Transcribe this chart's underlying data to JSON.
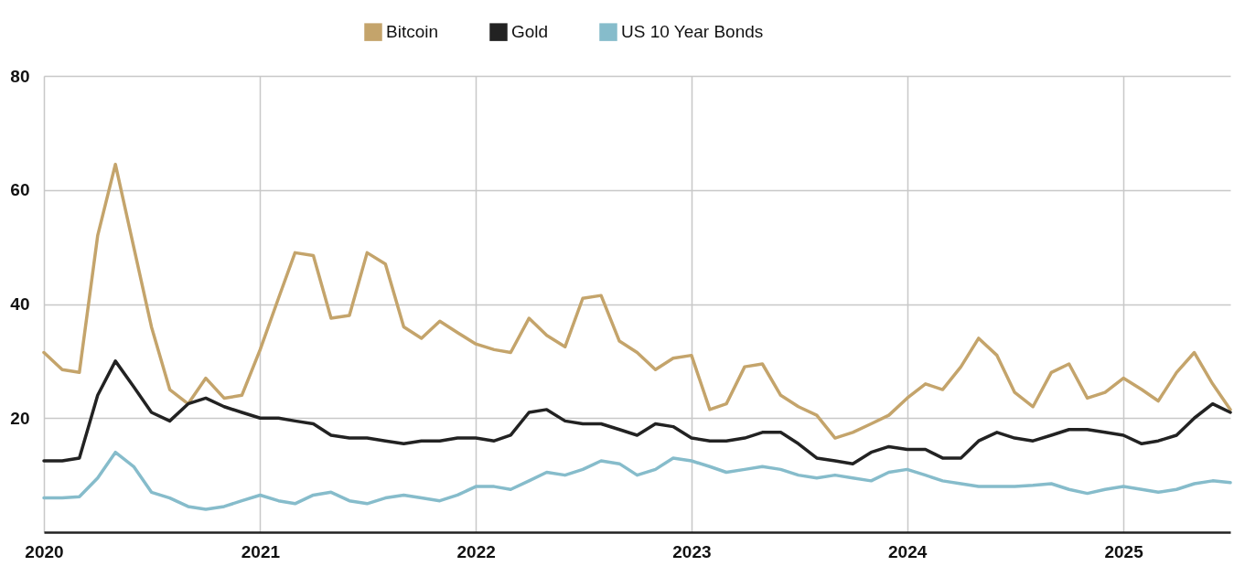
{
  "chart_data": {
    "type": "line",
    "x": [
      "2020-01",
      "2020-02",
      "2020-03",
      "2020-04",
      "2020-05",
      "2020-06",
      "2020-07",
      "2020-08",
      "2020-09",
      "2020-10",
      "2020-11",
      "2020-12",
      "2021-01",
      "2021-02",
      "2021-03",
      "2021-04",
      "2021-05",
      "2021-06",
      "2021-07",
      "2021-08",
      "2021-09",
      "2021-10",
      "2021-11",
      "2021-12",
      "2022-01",
      "2022-02",
      "2022-03",
      "2022-04",
      "2022-05",
      "2022-06",
      "2022-07",
      "2022-08",
      "2022-09",
      "2022-10",
      "2022-11",
      "2022-12",
      "2023-01",
      "2023-02",
      "2023-03",
      "2023-04",
      "2023-05",
      "2023-06",
      "2023-07",
      "2023-08",
      "2023-09",
      "2023-10",
      "2023-11",
      "2023-12",
      "2024-01",
      "2024-02",
      "2024-03",
      "2024-04",
      "2024-05",
      "2024-06",
      "2024-07",
      "2024-08",
      "2024-09",
      "2024-10",
      "2024-11",
      "2024-12",
      "2025-01",
      "2025-02",
      "2025-03",
      "2025-04",
      "2025-05",
      "2025-06",
      "2025-07"
    ],
    "series": [
      {
        "name": "Bitcoin",
        "color": "#c4a46b",
        "values": [
          31.5,
          28.5,
          28,
          52,
          64.5,
          50,
          36,
          25,
          22.5,
          27,
          23.5,
          24,
          32,
          41,
          49,
          48.5,
          37.5,
          38,
          49,
          47,
          36,
          34,
          37,
          35,
          33,
          32,
          31.5,
          37.5,
          34.5,
          32.5,
          41,
          41.5,
          33.5,
          31.5,
          28.5,
          30.5,
          31,
          21.5,
          22.5,
          29,
          29.5,
          24,
          22,
          20.5,
          16.5,
          17.5,
          19,
          20.5,
          23.5,
          26,
          25,
          29,
          34,
          31,
          24.5,
          22,
          28,
          29.5,
          23.5,
          24.5,
          27,
          25,
          23,
          28,
          31.5,
          26,
          21.5
        ]
      },
      {
        "name": "Gold",
        "color": "#222222",
        "values": [
          12.5,
          12.5,
          13,
          24,
          30,
          25.5,
          21,
          19.5,
          22.5,
          23.5,
          22,
          21,
          20,
          20,
          19.5,
          19,
          17,
          16.5,
          16.5,
          16,
          15.5,
          16,
          16,
          16.5,
          16.5,
          16,
          17,
          21,
          21.5,
          19.5,
          19,
          19,
          18,
          17,
          19,
          18.5,
          16.5,
          16,
          16,
          16.5,
          17.5,
          17.5,
          15.5,
          13,
          12.5,
          12,
          14,
          15,
          14.5,
          14.5,
          13,
          13,
          16,
          17.5,
          16.5,
          16,
          17,
          18,
          18,
          17.5,
          17,
          15.5,
          16,
          17,
          20,
          22.5,
          21
        ]
      },
      {
        "name": "US 10 Year Bonds",
        "color": "#86bccb",
        "values": [
          6,
          6,
          6.2,
          9.5,
          14,
          11.5,
          7,
          6,
          4.5,
          4,
          4.5,
          5.5,
          6.5,
          5.5,
          5,
          6.5,
          7,
          5.5,
          5,
          6,
          6.5,
          6,
          5.5,
          6.5,
          8,
          8,
          7.5,
          9,
          10.5,
          10,
          11,
          12.5,
          12,
          10,
          11,
          13,
          12.5,
          11.5,
          10.5,
          11,
          11.5,
          11,
          10,
          9.5,
          10,
          9.5,
          9,
          10.5,
          11,
          10,
          9,
          8.5,
          8,
          8,
          8,
          8.2,
          8.5,
          7.5,
          6.8,
          7.5,
          8,
          7.5,
          7,
          7.5,
          8.5,
          9,
          8.7
        ]
      }
    ],
    "xlim": [
      "2020-01",
      "2025-07"
    ],
    "xticks": [
      {
        "value": "2020",
        "label": "2020"
      },
      {
        "value": "2021",
        "label": "2021"
      },
      {
        "value": "2022",
        "label": "2022"
      },
      {
        "value": "2023",
        "label": "2023"
      },
      {
        "value": "2024",
        "label": "2024"
      },
      {
        "value": "2025",
        "label": "2025"
      }
    ],
    "ylim": [
      0,
      80
    ],
    "yticks": [
      20,
      40,
      60,
      80
    ],
    "grid": true,
    "legend": "top",
    "marker": "none",
    "line_style": "solid"
  }
}
